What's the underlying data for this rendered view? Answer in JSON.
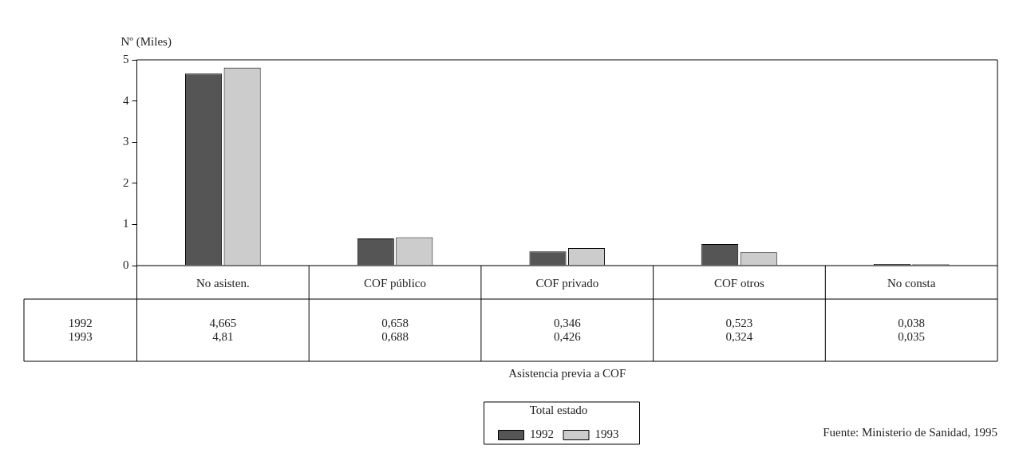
{
  "chart_data": {
    "type": "bar",
    "ylabel": "Nº (Miles)",
    "legend_title": "Total estado",
    "legend": "bottom",
    "grid": false,
    "categories": [
      "No asisten.",
      "COF público",
      "COF privado",
      "COF otros",
      "No consta"
    ],
    "ylim": [
      0,
      5
    ],
    "yticks": [
      0,
      1,
      2,
      3,
      4,
      5
    ],
    "series": [
      {
        "name": "1992",
        "color": "#555555",
        "values": [
          4.665,
          0.658,
          0.346,
          0.523,
          0.038
        ],
        "value_labels": [
          "4,665",
          "0,658",
          "0,346",
          "0,523",
          "0,038"
        ]
      },
      {
        "name": "1993",
        "color": "#cccccc",
        "values": [
          4.81,
          0.688,
          0.426,
          0.324,
          0.035
        ],
        "value_labels": [
          "4,81",
          "0,688",
          "0,426",
          "0,324",
          "0,035"
        ]
      }
    ],
    "annotations": [
      "Asistencia previa a COF",
      "Fuente: Ministerio de Sanidad, 1995"
    ]
  }
}
